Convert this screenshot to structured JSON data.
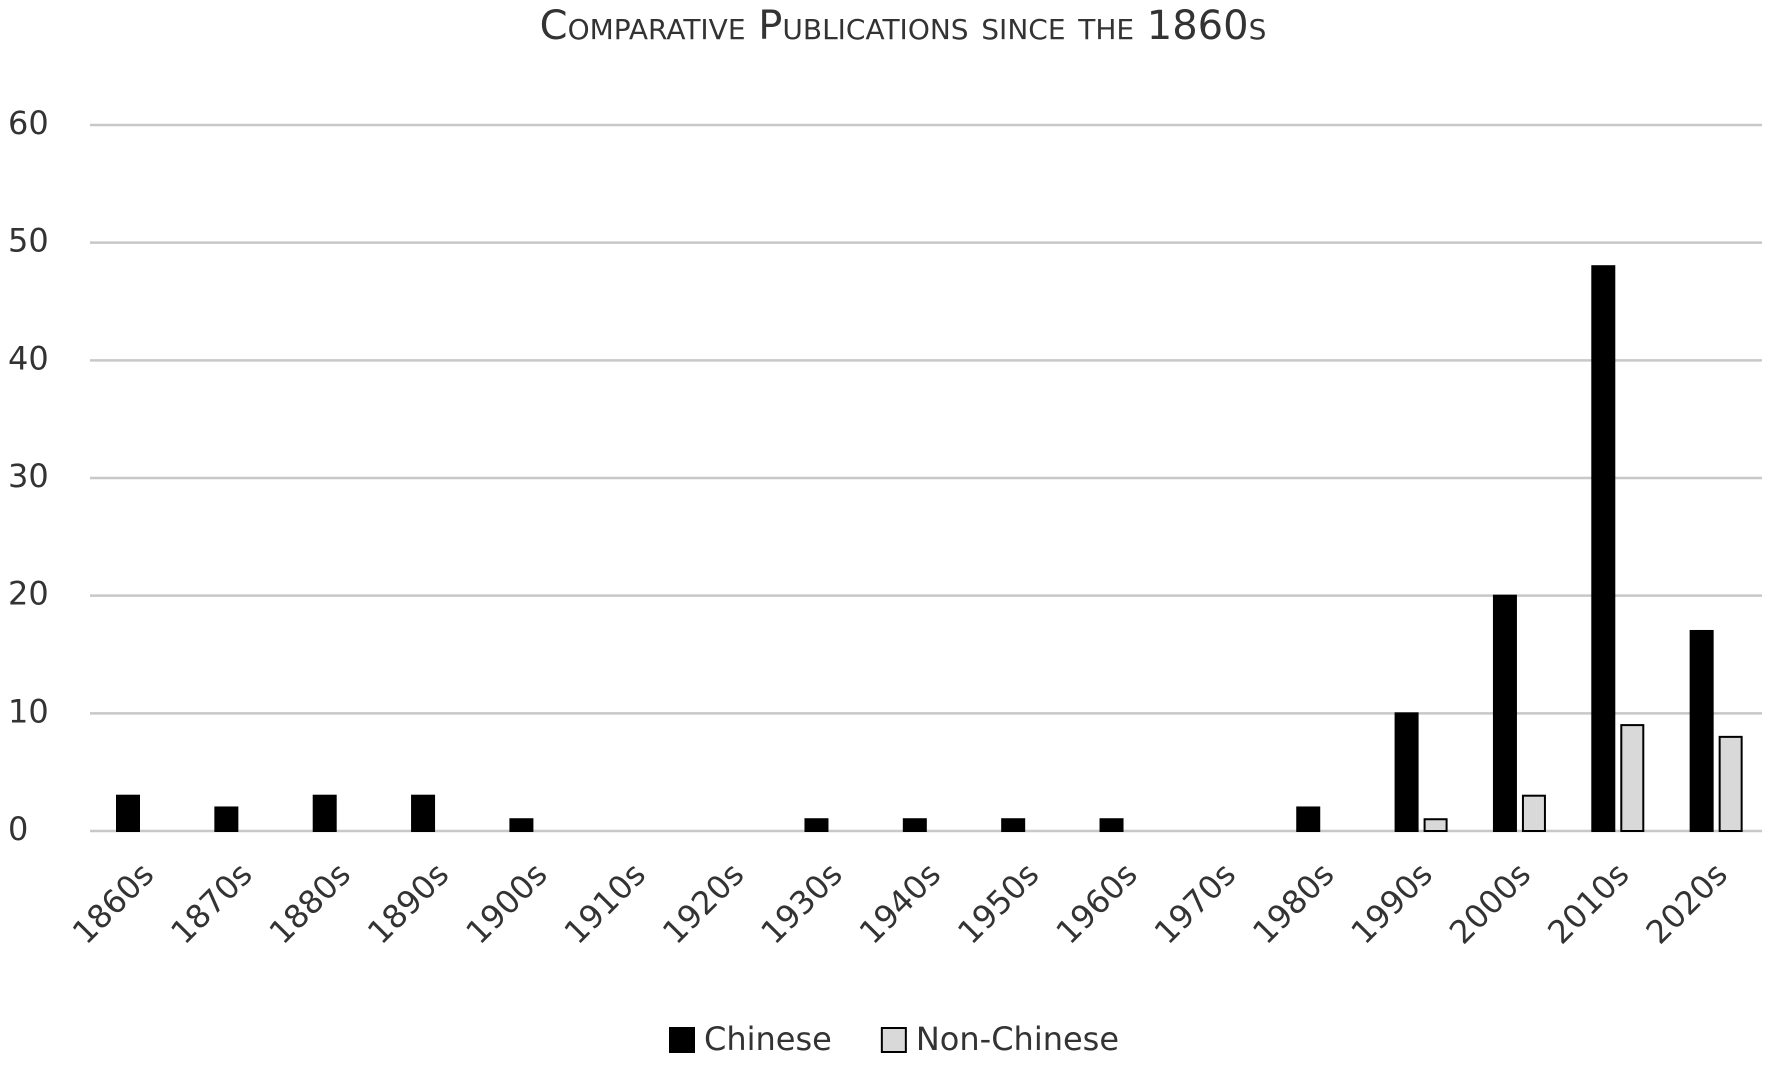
{
  "chart_data": {
    "type": "bar",
    "title": "Comparative Publications since the 1860s",
    "categories": [
      "1860s",
      "1870s",
      "1880s",
      "1890s",
      "1900s",
      "1910s",
      "1920s",
      "1930s",
      "1940s",
      "1950s",
      "1960s",
      "1970s",
      "1980s",
      "1990s",
      "2000s",
      "2010s",
      "2020s"
    ],
    "series": [
      {
        "name": "Chinese",
        "color": "#000000",
        "values": [
          3,
          2,
          3,
          3,
          1,
          0,
          0,
          1,
          1,
          1,
          1,
          0,
          2,
          10,
          20,
          48,
          17
        ]
      },
      {
        "name": "Non-Chinese",
        "color": "#d9d9d9",
        "values": [
          0,
          0,
          0,
          0,
          0,
          0,
          0,
          0,
          0,
          0,
          0,
          0,
          0,
          1,
          3,
          9,
          8
        ]
      }
    ],
    "ylim": [
      0,
      60
    ],
    "yticks": [
      0,
      10,
      20,
      30,
      40,
      50,
      60
    ],
    "grid": true,
    "legend": "bottom"
  }
}
